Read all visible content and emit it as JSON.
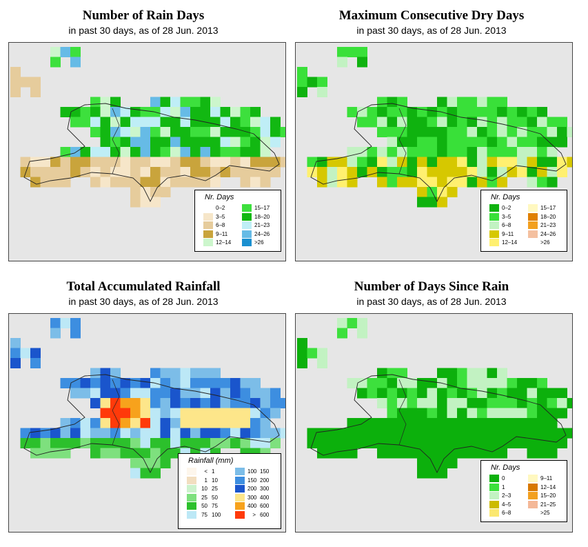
{
  "colors": {
    "map_bg": "#e6e6e6",
    "coast": "#222222",
    "nrdays": [
      "#ffffff",
      "#f6e6c9",
      "#e6cc9c",
      "#c9a43c",
      "#ccf6cc",
      "#3de03d",
      "#12b812",
      "#bfeef6",
      "#66bbe6",
      "#1a90d0"
    ],
    "drydays": [
      "#0fb20f",
      "#39e039",
      "#c2f2c2",
      "#d6c800",
      "#fff070",
      "#fff8c0",
      "#e08000",
      "#f2a020",
      "#f4c0a0",
      "#ffffff"
    ],
    "rainfall": [
      "#fdf6ec",
      "#f2dec0",
      "#ccf2cc",
      "#7ee07e",
      "#2cc02c",
      "#bce8f6",
      "#7cbde8",
      "#3d8ee0",
      "#1a55cc",
      "#fde68a",
      "#f7a21c",
      "#ff3a0a"
    ],
    "sincerain": [
      "#0cb00c",
      "#3de03d",
      "#c2f2c2",
      "#ccbb00",
      "#fbe870",
      "#fff8c0",
      "#d87800",
      "#f2a020",
      "#f4b898",
      "#ffffff"
    ]
  },
  "panels": [
    {
      "title": "Number of Rain Days",
      "subtitle": "in past 30 days, as of  28 Jun. 2013",
      "legend_title": "Nr. Days",
      "legend_items": [
        "0–2",
        "3–5",
        "6–8",
        "9–11",
        "12–14",
        "15–17",
        "18–20",
        "21–23",
        "24–26",
        ">26"
      ]
    },
    {
      "title": "Maximum Consecutive Dry Days",
      "subtitle": "in past 30 days, as of  28 Jun. 2013",
      "legend_title": "Nr. Days",
      "legend_items": [
        "0–2",
        "3–5",
        "6–8",
        "9–11",
        "12–14",
        "15–17",
        "18–20",
        "21–23",
        "24–26",
        ">26"
      ]
    },
    {
      "title": "Total Accumulated Rainfall",
      "subtitle": "in past 30 days, as of  28 Jun. 2013",
      "legend_title": "Rainfall (mm)",
      "legend_items": [
        [
          "<",
          "1"
        ],
        [
          "1",
          "10"
        ],
        [
          "10",
          "25"
        ],
        [
          "25",
          "50"
        ],
        [
          "50",
          "75"
        ],
        [
          "75",
          "100"
        ],
        [
          "100",
          "150"
        ],
        [
          "150",
          "200"
        ],
        [
          "200",
          "300"
        ],
        [
          "300",
          "400"
        ],
        [
          "400",
          "600"
        ],
        [
          ">",
          "600"
        ]
      ]
    },
    {
      "title": "Number of Days Since Rain",
      "subtitle": "in past 30 days, as of  28 Jun. 2013",
      "legend_title": "Nr. Days",
      "legend_items": [
        "0",
        "1",
        "2–3",
        "4–5",
        "6–8",
        "9–11",
        "12–14",
        "15–20",
        "21–25",
        ">25"
      ]
    }
  ]
}
